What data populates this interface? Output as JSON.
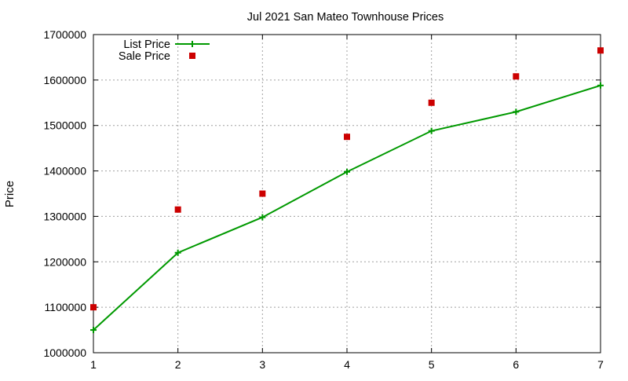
{
  "chart_data": {
    "type": "line",
    "title": "Jul 2021 San Mateo Townhouse Prices",
    "xlabel": "",
    "ylabel": "Price",
    "x": [
      1,
      2,
      3,
      4,
      5,
      6,
      7
    ],
    "xlim": [
      1,
      7
    ],
    "ylim": [
      1000000,
      1700000
    ],
    "yticks": [
      1000000,
      1100000,
      1200000,
      1300000,
      1400000,
      1500000,
      1600000,
      1700000
    ],
    "xticks": [
      1,
      2,
      3,
      4,
      5,
      6,
      7
    ],
    "grid": true,
    "legend_position": "top-left",
    "series": [
      {
        "name": "List Price",
        "style": "line-with-plus-markers",
        "color": "#009900",
        "values": [
          1050000,
          1220000,
          1298000,
          1398000,
          1488000,
          1530000,
          1588000
        ]
      },
      {
        "name": "Sale Price",
        "style": "square-markers",
        "color": "#cc0000",
        "values": [
          1100000,
          1315000,
          1350000,
          1475000,
          1550000,
          1608000,
          1665000
        ]
      }
    ]
  }
}
